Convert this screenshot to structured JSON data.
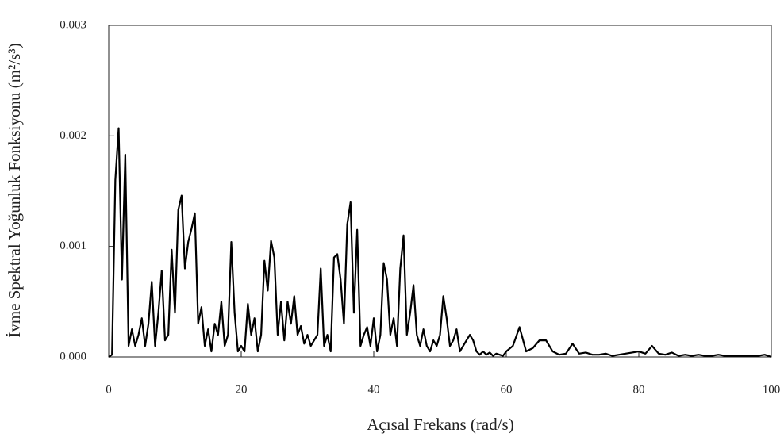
{
  "chart_data": {
    "type": "line",
    "xlabel": "Açısal Frekans (rad/s)",
    "ylabel": "İvme Spektral Yoğunluk Fonksiyonu (m²/s³)",
    "color": "#000000",
    "xlim": [
      0,
      100
    ],
    "xticks": [
      0,
      20,
      40,
      60,
      80,
      100
    ],
    "ylim": [
      0,
      0.003
    ],
    "yticks": [
      {
        "value": 0,
        "label": "0.000"
      },
      {
        "value": 0.001,
        "label": "0.001"
      },
      {
        "value": 0.002,
        "label": "0.002"
      },
      {
        "value": 0.003,
        "label": "0.003"
      }
    ],
    "x": [
      0,
      0.5,
      1,
      1.5,
      2,
      2.5,
      3,
      3.5,
      4,
      4.5,
      5,
      5.5,
      6,
      6.5,
      7,
      7.5,
      8,
      8.5,
      9,
      9.5,
      10,
      10.5,
      11,
      11.5,
      12,
      12.5,
      13,
      13.5,
      14,
      14.5,
      15,
      15.5,
      16,
      16.5,
      17,
      17.5,
      18,
      18.5,
      19,
      19.5,
      20,
      20.5,
      21,
      21.5,
      22,
      22.5,
      23,
      23.5,
      24,
      24.5,
      25,
      25.5,
      26,
      26.5,
      27,
      27.5,
      28,
      28.5,
      29,
      29.5,
      30,
      30.5,
      31,
      31.5,
      32,
      32.5,
      33,
      33.5,
      34,
      34.5,
      35,
      35.5,
      36,
      36.5,
      37,
      37.5,
      38,
      38.5,
      39,
      39.5,
      40,
      40.5,
      41,
      41.5,
      42,
      42.5,
      43,
      43.5,
      44,
      44.5,
      45,
      45.5,
      46,
      46.5,
      47,
      47.5,
      48,
      48.5,
      49,
      49.5,
      50,
      50.5,
      51,
      51.5,
      52,
      52.5,
      53,
      53.5,
      54,
      54.5,
      55,
      55.5,
      56,
      56.5,
      57,
      57.5,
      58,
      58.5,
      59,
      59.5,
      60,
      61,
      62,
      63,
      64,
      65,
      66,
      67,
      68,
      69,
      70,
      71,
      72,
      73,
      74,
      75,
      76,
      77,
      78,
      79,
      80,
      81,
      82,
      83,
      84,
      85,
      86,
      87,
      88,
      89,
      90,
      91,
      92,
      93,
      94,
      95,
      96,
      97,
      98,
      99,
      100
    ],
    "values": [
      0,
      2e-05,
      0.0016,
      0.00207,
      0.0007,
      0.00183,
      0.0001,
      0.00025,
      0.0001,
      0.0002,
      0.00035,
      0.0001,
      0.0003,
      0.00068,
      0.0001,
      0.0004,
      0.00078,
      0.00015,
      0.0002,
      0.00097,
      0.0004,
      0.00133,
      0.00146,
      0.0008,
      0.00104,
      0.00116,
      0.0013,
      0.0003,
      0.00045,
      0.0001,
      0.00025,
      5e-05,
      0.0003,
      0.0002,
      0.0005,
      0.0001,
      0.0002,
      0.00104,
      0.0004,
      5e-05,
      0.0001,
      5e-05,
      0.00048,
      0.0002,
      0.00035,
      5e-05,
      0.0002,
      0.00087,
      0.0006,
      0.00105,
      0.0009,
      0.0002,
      0.0005,
      0.00015,
      0.0005,
      0.0003,
      0.00055,
      0.0002,
      0.00028,
      0.00012,
      0.0002,
      0.0001,
      0.00015,
      0.0002,
      0.0008,
      0.0001,
      0.0002,
      5e-05,
      0.0009,
      0.00093,
      0.0007,
      0.0003,
      0.0012,
      0.0014,
      0.0004,
      0.00115,
      0.0001,
      0.0002,
      0.00027,
      0.0001,
      0.00035,
      5e-05,
      0.0002,
      0.00085,
      0.0007,
      0.0002,
      0.00035,
      0.0001,
      0.0008,
      0.0011,
      0.0002,
      0.0004,
      0.00065,
      0.0002,
      0.0001,
      0.00025,
      0.0001,
      5e-05,
      0.00015,
      0.0001,
      0.0002,
      0.00055,
      0.00035,
      0.0001,
      0.00015,
      0.00025,
      5e-05,
      0.0001,
      0.00015,
      0.0002,
      0.00015,
      5e-05,
      2e-05,
      5e-05,
      2e-05,
      4e-05,
      1e-05,
      3e-05,
      2e-05,
      1e-05,
      5e-05,
      0.0001,
      0.00027,
      5e-05,
      8e-05,
      0.00015,
      0.00015,
      5e-05,
      2e-05,
      3e-05,
      0.00012,
      3e-05,
      4e-05,
      2e-05,
      2e-05,
      3e-05,
      1e-05,
      2e-05,
      3e-05,
      4e-05,
      5e-05,
      3e-05,
      0.0001,
      3e-05,
      2e-05,
      4e-05,
      1e-05,
      2e-05,
      1e-05,
      2e-05,
      1e-05,
      1e-05,
      2e-05,
      1e-05,
      1e-05,
      1e-05,
      1e-05,
      1e-05,
      1e-05,
      2e-05,
      0
    ]
  }
}
